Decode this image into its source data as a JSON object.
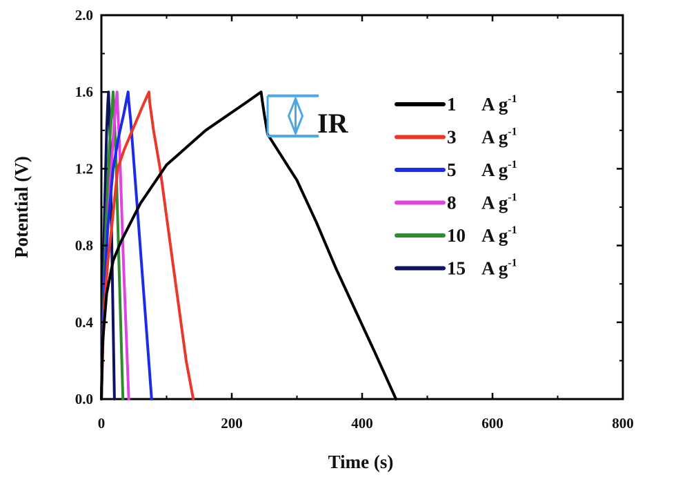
{
  "chart_data": {
    "type": "line",
    "xlabel": "Time (s)",
    "ylabel": "Potential (V)",
    "xlim": [
      0,
      800
    ],
    "ylim": [
      0.0,
      2.0
    ],
    "x_ticks": [
      "0",
      "200",
      "400",
      "600",
      "800"
    ],
    "y_ticks": [
      "0.0",
      "0.4",
      "0.8",
      "1.2",
      "1.6",
      "2.0"
    ],
    "grid": false,
    "legend_position": "right",
    "annotation": {
      "label": "IR",
      "color": "#4aa8e8",
      "y_top": 1.58,
      "y_bottom": 1.37,
      "x": 300
    },
    "series": [
      {
        "name": "1",
        "unit": "A g",
        "sup": "-1",
        "color": "#000000",
        "x": [
          0,
          2,
          8,
          18,
          30,
          45,
          60,
          80,
          100,
          130,
          160,
          190,
          220,
          245,
          247,
          250,
          255,
          270,
          300,
          330,
          360,
          390,
          420,
          452
        ],
        "y": [
          0.0,
          0.3,
          0.55,
          0.72,
          0.82,
          0.92,
          1.02,
          1.12,
          1.22,
          1.31,
          1.4,
          1.47,
          1.54,
          1.6,
          1.55,
          1.48,
          1.38,
          1.3,
          1.14,
          0.92,
          0.68,
          0.46,
          0.24,
          0.0
        ]
      },
      {
        "name": "3",
        "unit": "A g",
        "sup": "-1",
        "color": "#e8392a",
        "x": [
          0,
          2,
          5,
          10,
          16,
          25,
          35,
          45,
          55,
          65,
          73,
          74,
          76,
          80,
          90,
          100,
          110,
          120,
          130,
          141
        ],
        "y": [
          0.0,
          0.25,
          0.5,
          0.72,
          0.9,
          1.2,
          1.3,
          1.38,
          1.46,
          1.54,
          1.6,
          1.55,
          1.5,
          1.4,
          1.2,
          0.95,
          0.7,
          0.45,
          0.2,
          0.0
        ]
      },
      {
        "name": "5",
        "unit": "A g",
        "sup": "-1",
        "color": "#1c2be8",
        "x": [
          0,
          2,
          5,
          10,
          18,
          26,
          34,
          41,
          42,
          45,
          55,
          65,
          77
        ],
        "y": [
          0.0,
          0.3,
          0.6,
          0.9,
          1.2,
          1.36,
          1.48,
          1.6,
          1.55,
          1.45,
          1.0,
          0.55,
          0.0
        ]
      },
      {
        "name": "8",
        "unit": "A g",
        "sup": "-1",
        "color": "#e044e0",
        "x": [
          0,
          3,
          8,
          14,
          20,
          24,
          25,
          28,
          34,
          42
        ],
        "y": [
          0.0,
          0.4,
          0.8,
          1.15,
          1.45,
          1.6,
          1.52,
          1.3,
          0.7,
          0.0
        ]
      },
      {
        "name": "10",
        "unit": "A g",
        "sup": "-1",
        "color": "#2e8b2e",
        "x": [
          0,
          3,
          7,
          12,
          16,
          18,
          19,
          22,
          27,
          33
        ],
        "y": [
          0.0,
          0.45,
          0.9,
          1.3,
          1.5,
          1.6,
          1.52,
          1.3,
          0.7,
          0.0
        ]
      },
      {
        "name": "15",
        "unit": "A g",
        "sup": "-1",
        "color": "#0f1460",
        "x": [
          0,
          2,
          5,
          8,
          10,
          11,
          13,
          16,
          20
        ],
        "y": [
          0.0,
          0.5,
          1.0,
          1.4,
          1.55,
          1.6,
          1.4,
          0.8,
          0.0
        ]
      }
    ]
  }
}
